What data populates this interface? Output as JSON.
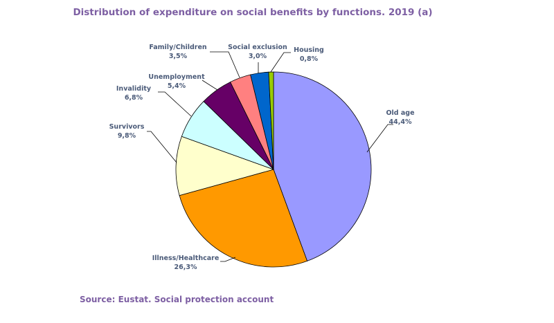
{
  "chart_data": {
    "type": "pie",
    "title": "Distribution of expenditure on social benefits by functions. 2019 (a)",
    "source": "Source: Eustat. Social protection account",
    "slices": [
      {
        "name": "Old age",
        "value": 44.4,
        "label": "44,4%",
        "color": "#9999ff"
      },
      {
        "name": "Illness/Healthcare",
        "value": 26.3,
        "label": "26,3%",
        "color": "#ff9900"
      },
      {
        "name": "Survivors",
        "value": 9.8,
        "label": "9,8%",
        "color": "#ffffcc"
      },
      {
        "name": "Invalidity",
        "value": 6.8,
        "label": "6,8%",
        "color": "#ccffff"
      },
      {
        "name": "Unemployment",
        "value": 5.4,
        "label": "5,4%",
        "color": "#660066"
      },
      {
        "name": "Family/Children",
        "value": 3.5,
        "label": "3,5%",
        "color": "#ff8080"
      },
      {
        "name": "Social exclusion",
        "value": 3.0,
        "label": "3,0%",
        "color": "#0066cc"
      },
      {
        "name": "Housing",
        "value": 0.8,
        "label": "0,8%",
        "color": "#99cc00"
      }
    ]
  }
}
